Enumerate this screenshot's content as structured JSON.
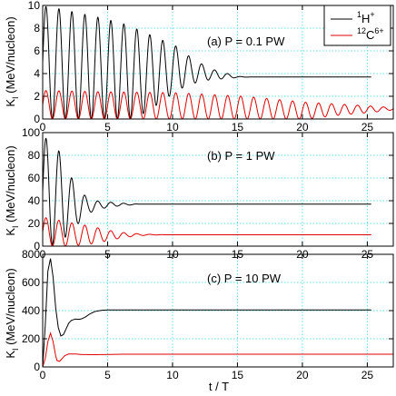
{
  "figure": {
    "xlabel": "t / T",
    "legend": {
      "placement": "top-right of panel (a)",
      "entries": [
        {
          "main": "H",
          "pre": "1",
          "sup": "+",
          "color": "#000000"
        },
        {
          "main": "C",
          "pre": "12",
          "sup": "6+",
          "color": "#e00000"
        }
      ]
    }
  },
  "chart_data": [
    {
      "type": "line",
      "panel_label": "(a) P = 0.1 PW",
      "ylabel": "K",
      "ylabel_sub": "I",
      "ylabel_rest": " (MeV/nucleon)",
      "xlim": [
        0,
        27
      ],
      "ylim": [
        0,
        10
      ],
      "xticks": [
        0,
        5,
        10,
        15,
        20,
        25
      ],
      "yticks": [
        0,
        2,
        4,
        6,
        8,
        10
      ],
      "grid": true,
      "series": [
        {
          "name": "1H+",
          "color": "#000000",
          "x_end": 25.3,
          "period": 1,
          "phase": 0.25,
          "final": 3.7,
          "peaks": [
            [
              0.5,
              9.9
            ],
            [
              2.5,
              9.4
            ],
            [
              4.5,
              8.9
            ],
            [
              6.5,
              8.3
            ],
            [
              8.5,
              7.3
            ],
            [
              10.5,
              6.3
            ],
            [
              11.5,
              5.3
            ],
            [
              13,
              4.4
            ],
            [
              15,
              3.75
            ],
            [
              16,
              3.7
            ]
          ],
          "troughs": [
            [
              0.5,
              0
            ],
            [
              3.5,
              0
            ],
            [
              6.5,
              0
            ],
            [
              7.5,
              0.3
            ],
            [
              8.5,
              1.0
            ],
            [
              9.5,
              1.8
            ],
            [
              10.5,
              2.6
            ],
            [
              11.5,
              3.1
            ],
            [
              12.5,
              3.4
            ],
            [
              15,
              3.65
            ],
            [
              16,
              3.7
            ]
          ]
        },
        {
          "name": "12C6+",
          "color": "#e00000",
          "x_end": 27,
          "period": 1,
          "phase": 0.25,
          "final": 0.9,
          "peaks": [
            [
              0.5,
              2.5
            ],
            [
              4.5,
              2.4
            ],
            [
              10.5,
              2.3
            ],
            [
              15.5,
              2.0
            ],
            [
              20.5,
              1.45
            ],
            [
              24.5,
              1.2
            ],
            [
              27,
              1.0
            ]
          ],
          "troughs": [
            [
              0.5,
              0
            ],
            [
              20.5,
              0
            ],
            [
              22.5,
              0.3
            ],
            [
              25.5,
              0.6
            ],
            [
              27,
              0.8
            ]
          ]
        }
      ]
    },
    {
      "type": "line",
      "panel_label": "(b) P = 1 PW",
      "ylabel": "K",
      "ylabel_sub": "I",
      "ylabel_rest": " (MeV/nucleon)",
      "xlim": [
        0,
        27
      ],
      "ylim": [
        0,
        100
      ],
      "xticks": [
        0,
        5,
        10,
        15,
        20,
        25
      ],
      "yticks": [
        0,
        20,
        40,
        60,
        80,
        100
      ],
      "grid": true,
      "series": [
        {
          "name": "1H+",
          "color": "#000000",
          "x_end": 25.3,
          "period": 1,
          "phase": 0.25,
          "final": 37,
          "peaks": [
            [
              0.5,
              95
            ],
            [
              1.5,
              80
            ],
            [
              2.5,
              53
            ],
            [
              3.5,
              42
            ],
            [
              4.5,
              39
            ],
            [
              5.5,
              38.5
            ],
            [
              6.5,
              37.5
            ],
            [
              7.5,
              37
            ]
          ],
          "troughs": [
            [
              0.5,
              0
            ],
            [
              1.5,
              5
            ],
            [
              2.5,
              17
            ],
            [
              3.5,
              29
            ],
            [
              4.5,
              33
            ],
            [
              5.5,
              35
            ],
            [
              6.5,
              36
            ],
            [
              7.5,
              37
            ]
          ]
        },
        {
          "name": "12C6+",
          "color": "#e00000",
          "x_end": 25.3,
          "period": 1,
          "phase": 0.25,
          "final": 10,
          "peaks": [
            [
              0.5,
              25
            ],
            [
              1.5,
              22
            ],
            [
              2.5,
              20
            ],
            [
              3.5,
              18
            ],
            [
              4.5,
              15.5
            ],
            [
              5.5,
              13
            ],
            [
              6.5,
              11.5
            ],
            [
              7.5,
              10.8
            ],
            [
              8.5,
              10.3
            ],
            [
              9.5,
              10
            ]
          ],
          "troughs": [
            [
              0.5,
              0
            ],
            [
              1.5,
              0
            ],
            [
              2.5,
              0.5
            ],
            [
              3.5,
              1.5
            ],
            [
              4.5,
              3.5
            ],
            [
              5.5,
              6
            ],
            [
              6.5,
              8
            ],
            [
              7.5,
              9.3
            ],
            [
              8.5,
              9.8
            ],
            [
              9.5,
              10
            ]
          ]
        }
      ]
    },
    {
      "type": "line",
      "panel_label": "(c) P = 10 PW",
      "ylabel": "K",
      "ylabel_sub": "I",
      "ylabel_rest": " (MeV/nucleon)",
      "xlim": [
        0,
        27
      ],
      "ylim": [
        0,
        800
      ],
      "xticks": [
        0,
        5,
        10,
        15,
        20,
        25
      ],
      "yticks": [
        0,
        200,
        400,
        600,
        800
      ],
      "grid": true,
      "series": [
        {
          "name": "1H+",
          "color": "#000000",
          "x_end": 25.3,
          "points": [
            [
              0,
              0
            ],
            [
              0.2,
              300
            ],
            [
              0.4,
              680
            ],
            [
              0.6,
              770
            ],
            [
              0.8,
              640
            ],
            [
              1.0,
              420
            ],
            [
              1.2,
              280
            ],
            [
              1.4,
              220
            ],
            [
              1.6,
              230
            ],
            [
              1.8,
              270
            ],
            [
              2.0,
              310
            ],
            [
              2.2,
              330
            ],
            [
              2.5,
              340
            ],
            [
              2.8,
              338
            ],
            [
              3.0,
              342
            ],
            [
              3.3,
              355
            ],
            [
              3.6,
              375
            ],
            [
              4.0,
              393
            ],
            [
              4.5,
              402
            ],
            [
              5.0,
              405
            ],
            [
              6.0,
              405
            ],
            [
              25.3,
              405
            ]
          ]
        },
        {
          "name": "12C6+",
          "color": "#e00000",
          "x_end": 27,
          "points": [
            [
              0,
              0
            ],
            [
              0.2,
              60
            ],
            [
              0.4,
              180
            ],
            [
              0.6,
              240
            ],
            [
              0.8,
              180
            ],
            [
              1.0,
              80
            ],
            [
              1.1,
              45
            ],
            [
              1.3,
              40
            ],
            [
              1.5,
              60
            ],
            [
              1.7,
              80
            ],
            [
              2.0,
              92
            ],
            [
              2.5,
              92
            ],
            [
              3.0,
              88
            ],
            [
              4.0,
              87
            ],
            [
              6.0,
              90
            ],
            [
              27,
              90
            ]
          ]
        }
      ]
    }
  ]
}
